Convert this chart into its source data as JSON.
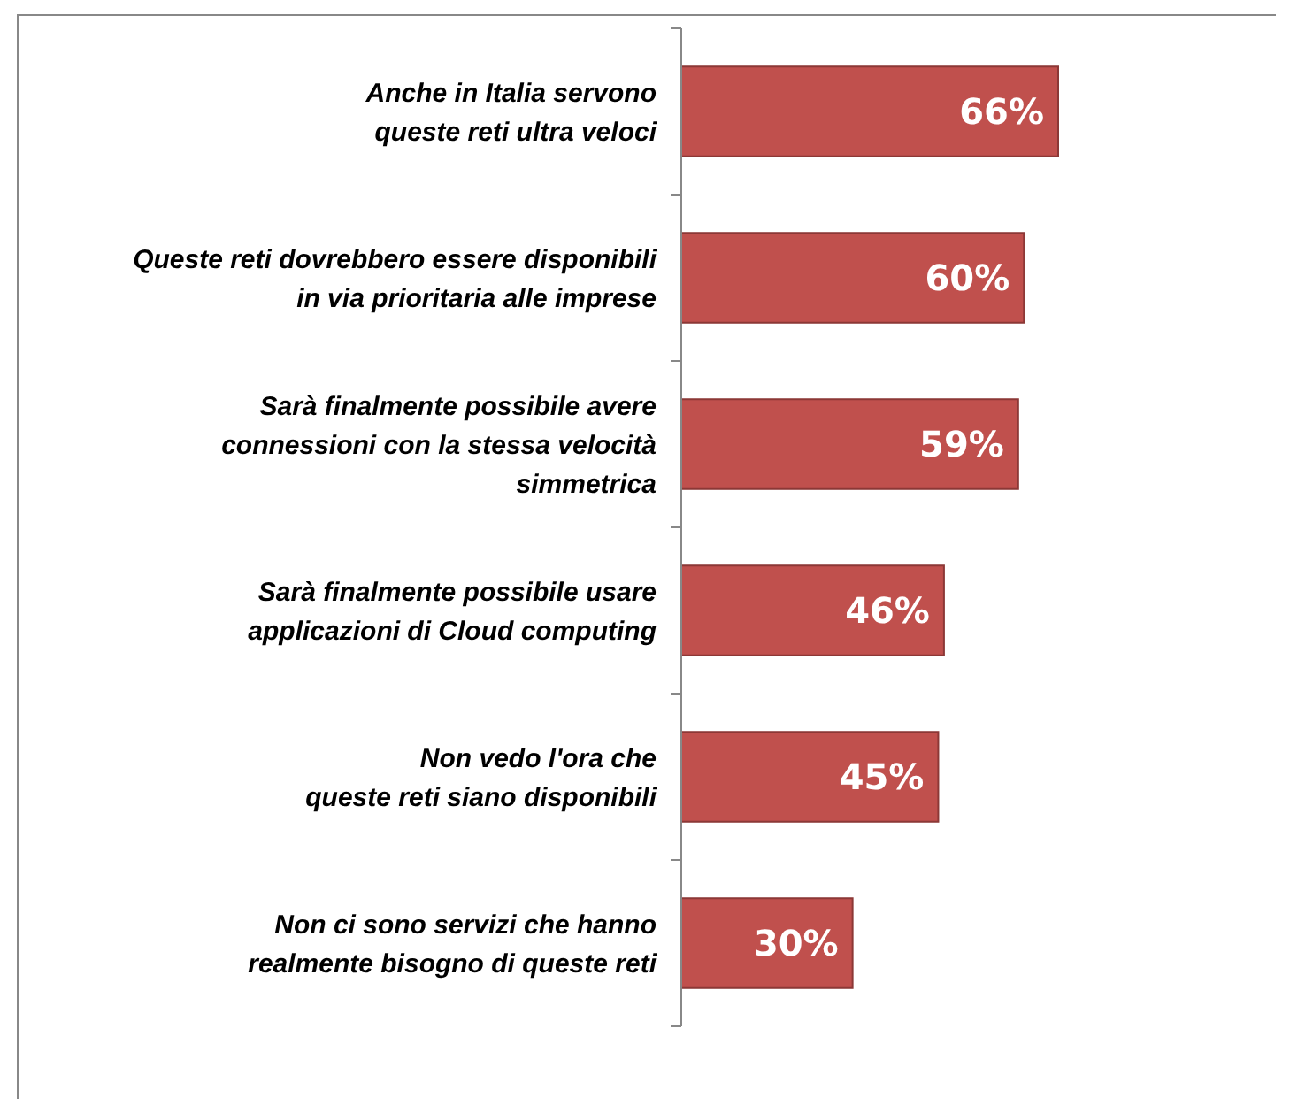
{
  "chart_data": {
    "type": "bar",
    "orientation": "horizontal",
    "categories": [
      "Anche in Italia servono\nqueste reti ultra veloci",
      "Queste reti dovrebbero essere disponibili\nin via prioritaria alle imprese",
      "Sarà finalmente possibile avere\nconnessioni con la stessa velocità\nsimmetrica",
      "Sarà finalmente possibile usare\napplicazioni di Cloud computing",
      "Non vedo l'ora che\nqueste reti siano disponibili",
      "Non ci sono servizi che hanno\nrealmente bisogno di queste reti"
    ],
    "values": [
      66,
      60,
      59,
      46,
      45,
      30
    ],
    "value_labels": [
      "66%",
      "60%",
      "59%",
      "46%",
      "45%",
      "30%"
    ],
    "color": "#c0504d"
  }
}
